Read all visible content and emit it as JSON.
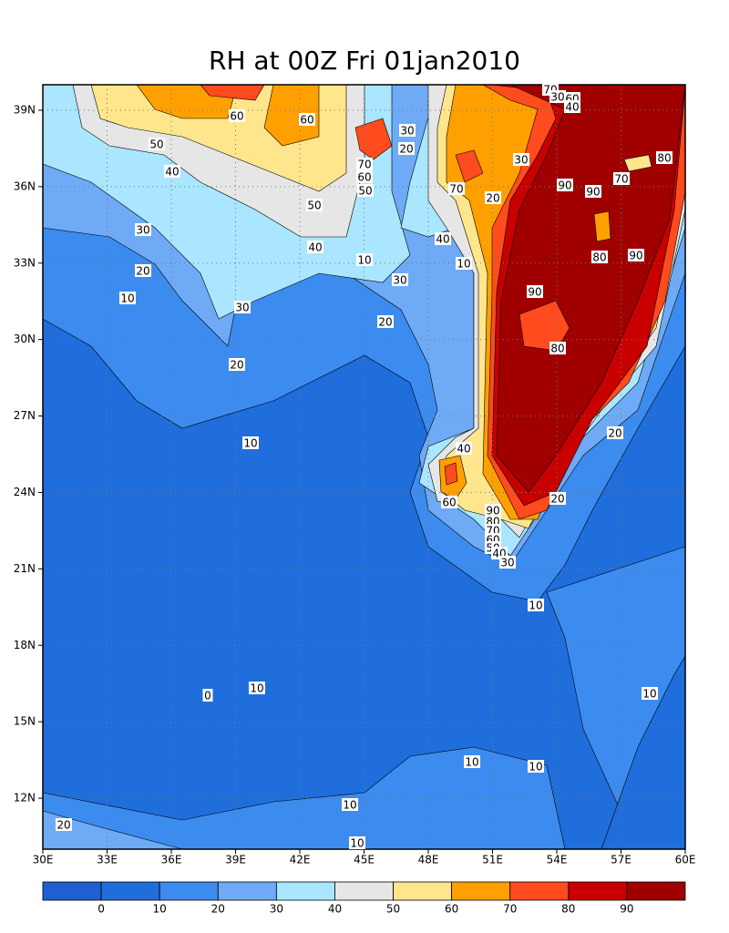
{
  "chart_data": {
    "type": "contour",
    "title": "RH at 00Z Fri 01jan2010",
    "xlim": [
      30,
      60
    ],
    "ylim": [
      10,
      40
    ],
    "xticks": [
      {
        "value": 30,
        "label": "30E"
      },
      {
        "value": 33,
        "label": "33E"
      },
      {
        "value": 36,
        "label": "36E"
      },
      {
        "value": 39,
        "label": "39E"
      },
      {
        "value": 42,
        "label": "42E"
      },
      {
        "value": 45,
        "label": "45E"
      },
      {
        "value": 48,
        "label": "48E"
      },
      {
        "value": 51,
        "label": "51E"
      },
      {
        "value": 54,
        "label": "54E"
      },
      {
        "value": 57,
        "label": "57E"
      },
      {
        "value": 60,
        "label": "60E"
      }
    ],
    "yticks": [
      {
        "value": 12,
        "label": "12N"
      },
      {
        "value": 15,
        "label": "15N"
      },
      {
        "value": 18,
        "label": "18N"
      },
      {
        "value": 21,
        "label": "21N"
      },
      {
        "value": 24,
        "label": "24N"
      },
      {
        "value": 27,
        "label": "27N"
      },
      {
        "value": 30,
        "label": "30N"
      },
      {
        "value": 33,
        "label": "33N"
      },
      {
        "value": 36,
        "label": "36N"
      },
      {
        "value": 39,
        "label": "39N"
      }
    ],
    "grid": true,
    "colorbar": {
      "levels": [
        0,
        10,
        20,
        30,
        40,
        50,
        60,
        70,
        80,
        90
      ],
      "colors": [
        "#1e5fd2",
        "#1f6edc",
        "#3c8cf0",
        "#6eaaf5",
        "#aae6ff",
        "#e6e6e6",
        "#ffe68c",
        "#ffa000",
        "#ff4b1e",
        "#c80000",
        "#a00000"
      ]
    },
    "contour_labels": [
      70,
      60,
      30,
      40,
      60,
      60,
      30,
      50,
      20,
      80,
      70,
      30,
      40,
      60,
      70,
      50,
      90,
      70,
      90,
      20,
      50,
      30,
      40,
      40,
      80,
      90,
      10,
      10,
      20,
      30,
      10,
      90,
      30,
      20,
      80,
      20,
      20,
      10,
      40,
      20,
      60,
      90,
      80,
      70,
      60,
      50,
      40,
      30,
      10,
      10,
      0,
      10,
      10,
      10,
      10,
      20,
      10
    ]
  }
}
